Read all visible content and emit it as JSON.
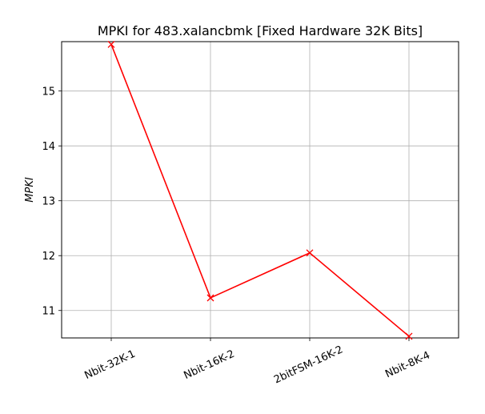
{
  "chart_data": {
    "type": "line",
    "title": "MPKI for 483.xalancbmk [Fixed Hardware 32K Bits]",
    "xlabel": "",
    "ylabel": "MPKI",
    "categories": [
      "Nbit-32K-1",
      "Nbit-16K-2",
      "2bitFSM-16K-2",
      "Nbit-8K-4"
    ],
    "series": [
      {
        "values": [
          15.85,
          11.23,
          12.05,
          10.53
        ],
        "color": "#ff0000",
        "marker": "x"
      }
    ],
    "ylim": [
      10.5,
      15.9
    ],
    "yticks": [
      11,
      12,
      13,
      14,
      15
    ],
    "grid": true,
    "xtick_rotation": -25
  }
}
